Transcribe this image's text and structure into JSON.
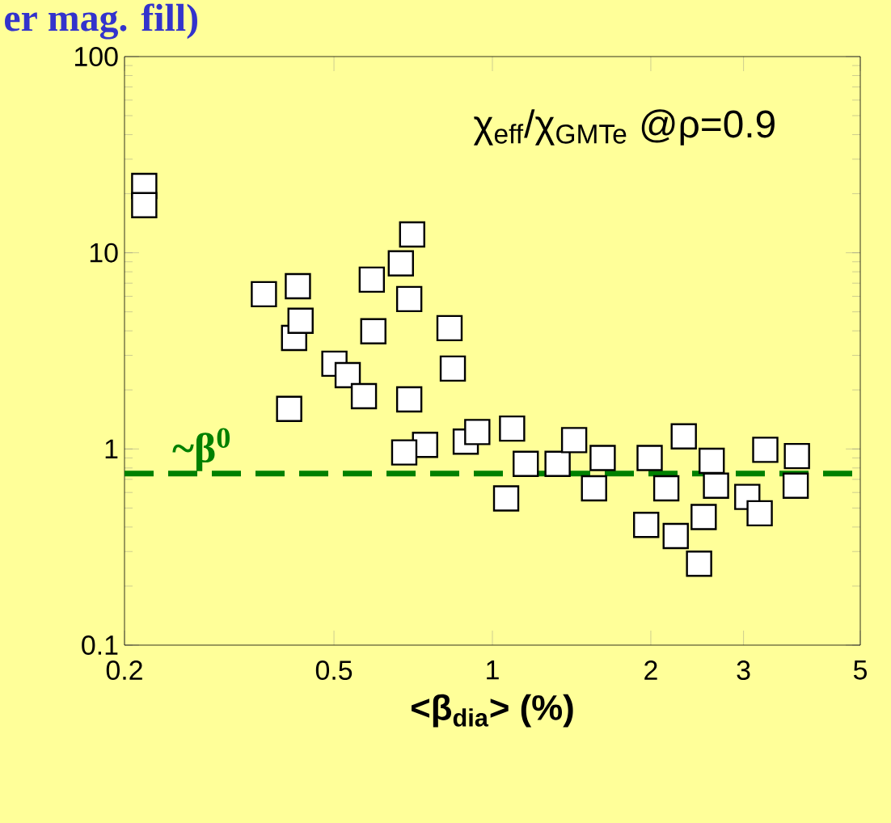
{
  "chart_data": {
    "type": "scatter",
    "title": "er mag. fill)",
    "xlabel": "<β$_{dia}$> (%)",
    "annotations": [
      "χ$_{eff}$/χ$_{GMTe}$ @ρ=0.9"
    ],
    "log": "xy",
    "grid": false,
    "marker": "square",
    "xlim": [
      0.2,
      5
    ],
    "ylim": [
      0.1,
      100
    ],
    "xticks": [
      0.2,
      0.5,
      1,
      2,
      3,
      5
    ],
    "yticks": [
      0.1,
      1,
      10,
      100
    ],
    "ref_lines": [
      {
        "axis": "y",
        "value": 0.75,
        "label": "~β$^{0}$",
        "color": "#008000",
        "line_style": "dashed"
      }
    ],
    "series": [
      {
        "color": "#ffffff",
        "x": [
          0.218,
          0.218,
          0.368,
          0.427,
          0.42,
          0.432,
          0.411,
          0.501,
          0.531,
          0.57,
          0.59,
          0.594,
          0.704,
          0.67,
          0.695,
          0.695,
          0.829,
          0.841,
          0.745,
          0.68,
          0.89,
          0.936,
          1.062,
          1.157,
          1.09,
          1.33,
          1.43,
          1.56,
          1.62,
          1.99,
          2.14,
          1.96,
          2.23,
          2.47,
          2.52,
          2.31,
          2.61,
          3.05,
          3.3,
          3.79,
          3.77,
          3.22,
          2.66
        ],
        "values": [
          21.9,
          17.5,
          6.15,
          6.76,
          3.68,
          4.5,
          1.6,
          2.72,
          2.38,
          1.86,
          7.3,
          3.98,
          12.4,
          8.83,
          5.81,
          1.79,
          4.13,
          2.57,
          1.05,
          0.96,
          1.09,
          1.22,
          0.56,
          0.84,
          1.27,
          0.84,
          1.11,
          0.63,
          0.9,
          0.9,
          0.63,
          0.41,
          0.36,
          0.26,
          0.45,
          1.16,
          0.87,
          0.57,
          0.99,
          0.92,
          0.65,
          0.47,
          0.65
        ]
      }
    ]
  }
}
